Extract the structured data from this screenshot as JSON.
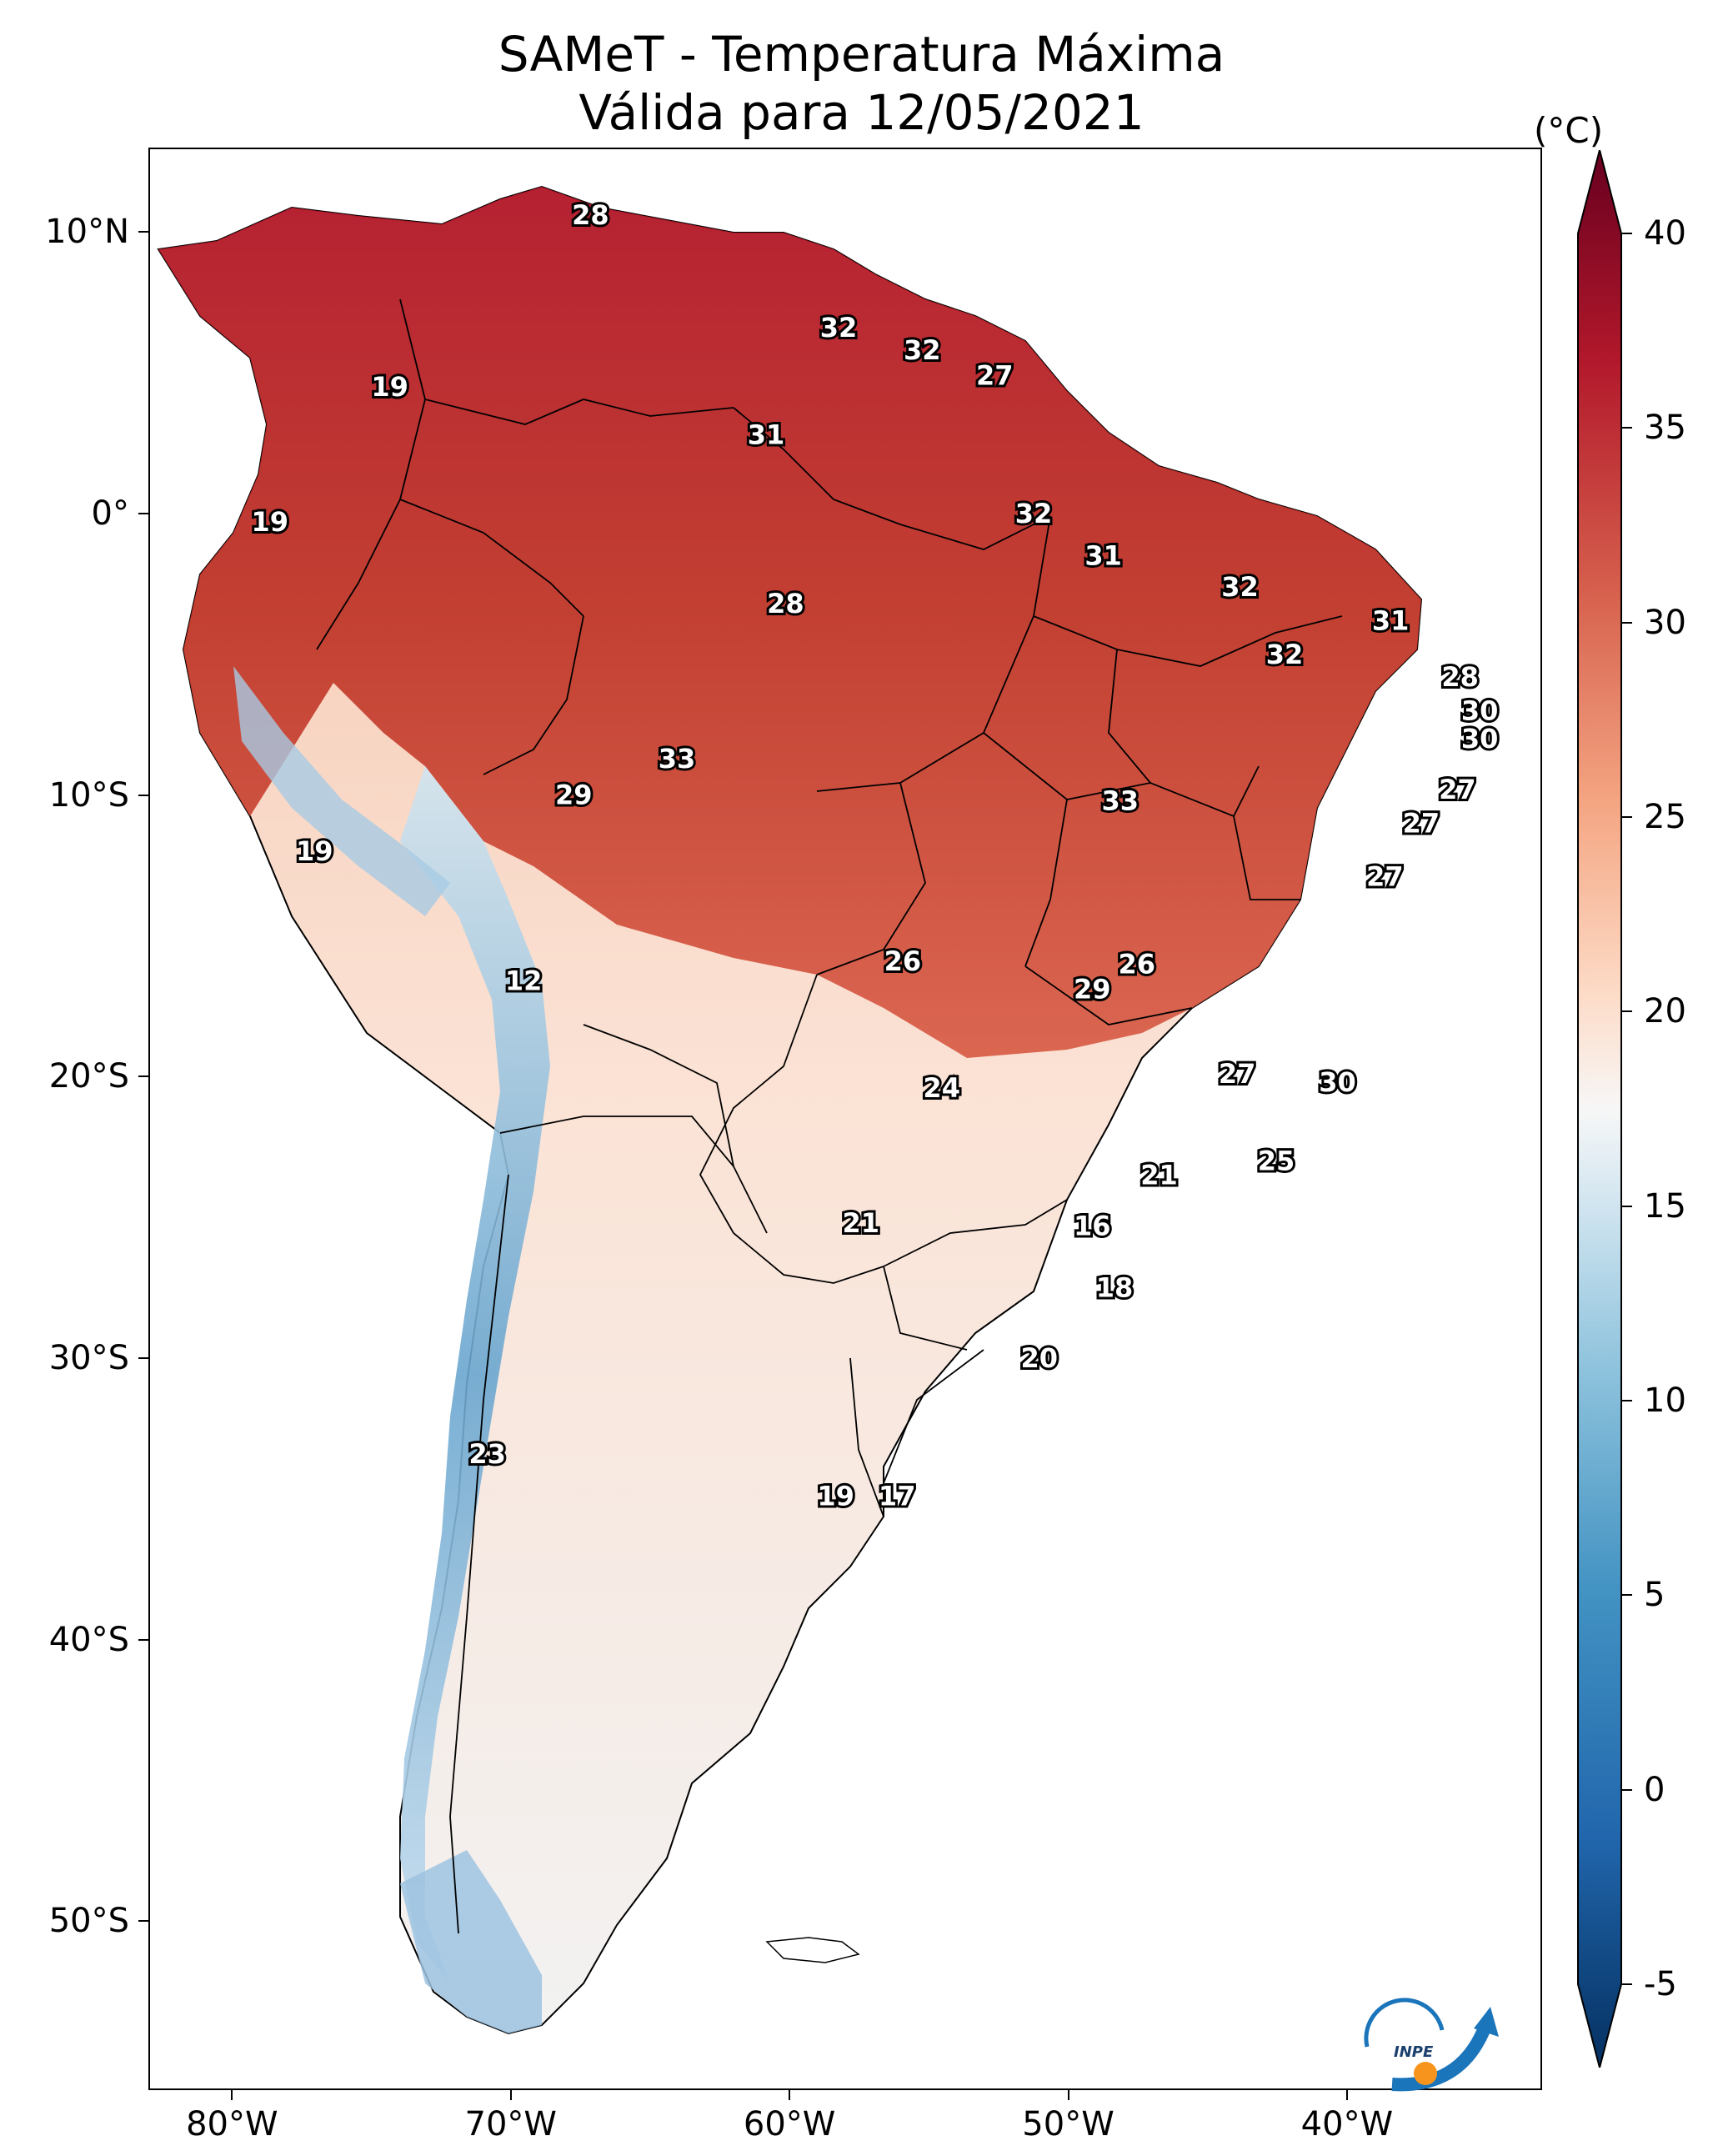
{
  "title": {
    "line1": "SAMeT - Temperatura Máxima",
    "line2": "Válida para 12/05/2021"
  },
  "colorbar": {
    "unit": "(°C)",
    "ticks": [
      40,
      35,
      30,
      25,
      20,
      15,
      10,
      5,
      0,
      -5
    ],
    "range": [
      -5,
      40
    ],
    "colormap": "RdBu_r",
    "colors": {
      "cold": "#053061",
      "mid": "#f7f7f7",
      "hot": "#67001f"
    }
  },
  "axes": {
    "lat_ticks": [
      {
        "label": "10°N",
        "value": 10
      },
      {
        "label": "0°",
        "value": 0
      },
      {
        "label": "10°S",
        "value": -10
      },
      {
        "label": "20°S",
        "value": -20
      },
      {
        "label": "30°S",
        "value": -30
      },
      {
        "label": "40°S",
        "value": -40
      },
      {
        "label": "50°S",
        "value": -50
      }
    ],
    "lon_ticks": [
      {
        "label": "80°W",
        "value": -80
      },
      {
        "label": "70°W",
        "value": -70
      },
      {
        "label": "60°W",
        "value": -60
      },
      {
        "label": "50°W",
        "value": -50
      },
      {
        "label": "40°W",
        "value": -40
      }
    ],
    "lon_range": [
      -83,
      -33
    ],
    "lat_range": [
      -56,
      13
    ]
  },
  "map_labels": [
    {
      "text": "28",
      "lon": -67.2,
      "lat": 10.6
    },
    {
      "text": "19",
      "lon": -74.4,
      "lat": 4.5
    },
    {
      "text": "32",
      "lon": -58.3,
      "lat": 6.6
    },
    {
      "text": "32",
      "lon": -55.3,
      "lat": 5.8
    },
    {
      "text": "27",
      "lon": -52.7,
      "lat": 4.9
    },
    {
      "text": "31",
      "lon": -60.9,
      "lat": 2.8
    },
    {
      "text": "19",
      "lon": -78.7,
      "lat": -0.3
    },
    {
      "text": "32",
      "lon": -51.3,
      "lat": 0.0
    },
    {
      "text": "31",
      "lon": -48.8,
      "lat": -1.5
    },
    {
      "text": "28",
      "lon": -60.2,
      "lat": -3.2
    },
    {
      "text": "32",
      "lon": -43.9,
      "lat": -2.6
    },
    {
      "text": "31",
      "lon": -38.5,
      "lat": -3.8
    },
    {
      "text": "32",
      "lon": -42.3,
      "lat": -5.0
    },
    {
      "text": "28",
      "lon": -36.0,
      "lat": -5.8
    },
    {
      "text": "30",
      "lon": -35.3,
      "lat": -7.0
    },
    {
      "text": "30",
      "lon": -35.3,
      "lat": -8.0
    },
    {
      "text": "33",
      "lon": -64.1,
      "lat": -8.7
    },
    {
      "text": "29",
      "lon": -67.8,
      "lat": -10.0
    },
    {
      "text": "27",
      "lon": -36.1,
      "lat": -9.8
    },
    {
      "text": "33",
      "lon": -48.2,
      "lat": -10.2
    },
    {
      "text": "27",
      "lon": -37.4,
      "lat": -11.0
    },
    {
      "text": "19",
      "lon": -77.1,
      "lat": -12.0
    },
    {
      "text": "27",
      "lon": -38.7,
      "lat": -12.9
    },
    {
      "text": "26",
      "lon": -56.0,
      "lat": -15.9
    },
    {
      "text": "26",
      "lon": -47.6,
      "lat": -16.0
    },
    {
      "text": "29",
      "lon": -49.2,
      "lat": -16.9
    },
    {
      "text": "12",
      "lon": -69.6,
      "lat": -16.6
    },
    {
      "text": "27",
      "lon": -44.0,
      "lat": -19.9
    },
    {
      "text": "24",
      "lon": -54.6,
      "lat": -20.4
    },
    {
      "text": "30",
      "lon": -40.4,
      "lat": -20.2
    },
    {
      "text": "25",
      "lon": -42.6,
      "lat": -23.0
    },
    {
      "text": "21",
      "lon": -46.8,
      "lat": -23.5
    },
    {
      "text": "21",
      "lon": -57.5,
      "lat": -25.2
    },
    {
      "text": "16",
      "lon": -49.2,
      "lat": -25.3
    },
    {
      "text": "18",
      "lon": -48.4,
      "lat": -27.5
    },
    {
      "text": "20",
      "lon": -51.1,
      "lat": -30.0
    },
    {
      "text": "23",
      "lon": -70.9,
      "lat": -33.4
    },
    {
      "text": "19",
      "lon": -58.4,
      "lat": -34.9
    },
    {
      "text": "17",
      "lon": -56.2,
      "lat": -34.9
    }
  ],
  "logo": {
    "text": "INPE"
  }
}
